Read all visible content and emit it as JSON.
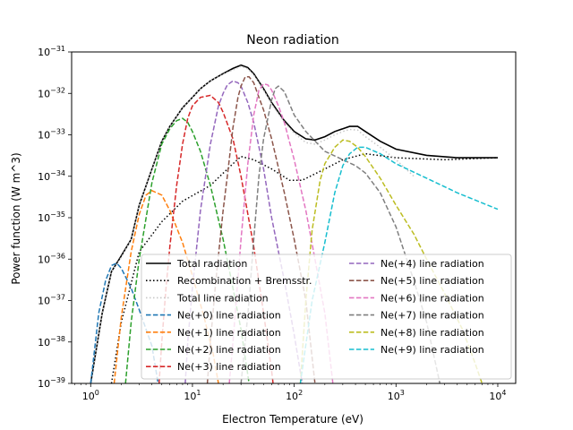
{
  "chart_data": {
    "type": "line",
    "title": "Neon radiation",
    "xlabel": "Electron Temperature (eV)",
    "ylabel": "Power function (W m^3)",
    "x_scale": "log",
    "y_scale": "log",
    "xlim": [
      0.65,
      15000
    ],
    "ylim": [
      1e-39,
      1e-31
    ],
    "x_tick_values": [
      1,
      10,
      100,
      1000,
      10000
    ],
    "x_tick_labels": [
      [
        "10",
        "0"
      ],
      [
        "10",
        "1"
      ],
      [
        "10",
        "2"
      ],
      [
        "10",
        "3"
      ],
      [
        "10",
        "4"
      ]
    ],
    "y_tick_values": [
      1e-39,
      1e-38,
      1e-37,
      1e-36,
      1e-35,
      1e-34,
      1e-33,
      1e-32,
      1e-31
    ],
    "y_tick_labels": [
      [
        "10",
        "−39"
      ],
      [
        "10",
        "−38"
      ],
      [
        "10",
        "−37"
      ],
      [
        "10",
        "−36"
      ],
      [
        "10",
        "−35"
      ],
      [
        "10",
        "−34"
      ],
      [
        "10",
        "−33"
      ],
      [
        "10",
        "−32"
      ],
      [
        "10",
        "−31"
      ]
    ],
    "grid": false,
    "legend_position": "lower-right",
    "legend_columns": 2,
    "series": [
      {
        "name": "Total radiation",
        "color": "#000000",
        "style": "solid",
        "points": [
          [
            1.0,
            1e-39
          ],
          [
            1.3,
            5e-38
          ],
          [
            1.6,
            5e-37
          ],
          [
            2.0,
            1.2e-36
          ],
          [
            2.5,
            3e-36
          ],
          [
            3.0,
            2e-35
          ],
          [
            4.0,
            1.5e-34
          ],
          [
            5.0,
            7e-34
          ],
          [
            6.0,
            1.6e-33
          ],
          [
            8.0,
            4.5e-33
          ],
          [
            10,
            8e-33
          ],
          [
            12,
            1.3e-32
          ],
          [
            15,
            2e-32
          ],
          [
            20,
            3e-32
          ],
          [
            25,
            4e-32
          ],
          [
            30,
            4.8e-32
          ],
          [
            35,
            4.2e-32
          ],
          [
            40,
            3e-32
          ],
          [
            50,
            1.3e-32
          ],
          [
            60,
            6e-33
          ],
          [
            80,
            2.2e-33
          ],
          [
            100,
            1.2e-33
          ],
          [
            130,
            8e-34
          ],
          [
            160,
            7.5e-34
          ],
          [
            200,
            9e-34
          ],
          [
            250,
            1.2e-33
          ],
          [
            300,
            1.4e-33
          ],
          [
            350,
            1.6e-33
          ],
          [
            420,
            1.6e-33
          ],
          [
            500,
            1.2e-33
          ],
          [
            700,
            7e-34
          ],
          [
            1000,
            4.5e-34
          ],
          [
            2000,
            3.2e-34
          ],
          [
            4000,
            2.8e-34
          ],
          [
            10000,
            2.8e-34
          ]
        ]
      },
      {
        "name": "Recombination + Bremsstr.",
        "color": "#000000",
        "style": "dotted",
        "points": [
          [
            1.6,
            1e-39
          ],
          [
            2.0,
            3e-38
          ],
          [
            3.0,
            1.5e-36
          ],
          [
            5.0,
            8e-36
          ],
          [
            8.0,
            2.5e-35
          ],
          [
            15,
            6e-35
          ],
          [
            25,
            2e-34
          ],
          [
            30,
            3e-34
          ],
          [
            40,
            2.5e-34
          ],
          [
            60,
            1.5e-34
          ],
          [
            90,
            8e-35
          ],
          [
            120,
            8e-35
          ],
          [
            200,
            1.5e-34
          ],
          [
            300,
            2.5e-34
          ],
          [
            500,
            3.5e-34
          ],
          [
            1000,
            2.8e-34
          ],
          [
            3000,
            2.5e-34
          ],
          [
            10000,
            2.8e-34
          ]
        ]
      },
      {
        "name": "Total line radiation",
        "color": "#c7c7c7",
        "style": "dotted",
        "points": [
          [
            1.0,
            1e-39
          ],
          [
            1.3,
            5e-38
          ],
          [
            1.6,
            5e-37
          ],
          [
            2.0,
            1.1e-36
          ],
          [
            2.5,
            3e-36
          ],
          [
            3.0,
            2e-35
          ],
          [
            4.0,
            1.5e-34
          ],
          [
            5.0,
            7e-34
          ],
          [
            6.0,
            1.6e-33
          ],
          [
            8.0,
            4.5e-33
          ],
          [
            10,
            8e-33
          ],
          [
            12,
            1.3e-32
          ],
          [
            15,
            2e-32
          ],
          [
            20,
            2.9e-32
          ],
          [
            25,
            3.7e-32
          ],
          [
            30,
            4.5e-32
          ],
          [
            35,
            3.9e-32
          ],
          [
            40,
            2.8e-32
          ],
          [
            50,
            1.2e-32
          ],
          [
            60,
            5.5e-33
          ],
          [
            80,
            2e-33
          ],
          [
            100,
            1.1e-33
          ],
          [
            130,
            6.5e-34
          ],
          [
            160,
            6e-34
          ],
          [
            200,
            7.5e-34
          ],
          [
            250,
            1e-33
          ],
          [
            300,
            1.2e-33
          ],
          [
            350,
            1.35e-33
          ],
          [
            420,
            1.3e-33
          ],
          [
            500,
            9e-34
          ],
          [
            700,
            5e-34
          ],
          [
            1000,
            2.5e-34
          ],
          [
            1500,
            1e-34
          ]
        ]
      },
      {
        "name": "Ne(+0) line radiation",
        "color": "#1f77b4",
        "style": "dashed",
        "points": [
          [
            1.0,
            1e-39
          ],
          [
            1.2,
            5e-38
          ],
          [
            1.4,
            3e-37
          ],
          [
            1.6,
            7e-37
          ],
          [
            1.8,
            8e-37
          ],
          [
            2.0,
            6e-37
          ],
          [
            2.5,
            2e-37
          ],
          [
            3.0,
            6e-38
          ],
          [
            4.0,
            8e-39
          ],
          [
            4.6,
            1e-39
          ]
        ]
      },
      {
        "name": "Ne(+1) line radiation",
        "color": "#ff7f0e",
        "style": "dashed",
        "points": [
          [
            1.7,
            1e-39
          ],
          [
            2.0,
            4e-38
          ],
          [
            2.5,
            1.5e-36
          ],
          [
            3.0,
            1.2e-35
          ],
          [
            3.5,
            3.5e-35
          ],
          [
            4.0,
            4.5e-35
          ],
          [
            5.0,
            3.5e-35
          ],
          [
            6.0,
            1.5e-35
          ],
          [
            8.0,
            2.5e-36
          ],
          [
            10,
            4e-37
          ],
          [
            13,
            4e-38
          ],
          [
            16,
            5e-39
          ],
          [
            18,
            1e-39
          ]
        ]
      },
      {
        "name": "Ne(+2) line radiation",
        "color": "#2ca02c",
        "style": "dashed",
        "points": [
          [
            2.2,
            1e-39
          ],
          [
            2.5,
            3e-38
          ],
          [
            3.0,
            1e-36
          ],
          [
            4.0,
            7e-35
          ],
          [
            5.0,
            6e-34
          ],
          [
            6.0,
            1.4e-33
          ],
          [
            7.0,
            2.2e-33
          ],
          [
            8.0,
            2.5e-33
          ],
          [
            9.0,
            2e-33
          ],
          [
            10,
            1.2e-33
          ],
          [
            12,
            4e-34
          ],
          [
            15,
            6e-35
          ],
          [
            20,
            3e-36
          ],
          [
            25,
            2e-37
          ],
          [
            30,
            2e-38
          ],
          [
            36,
            1e-39
          ]
        ]
      },
      {
        "name": "Ne(+3) line radiation",
        "color": "#d62728",
        "style": "dashed",
        "points": [
          [
            4.7,
            1e-39
          ],
          [
            5.0,
            1e-38
          ],
          [
            5.5,
            2e-37
          ],
          [
            6.0,
            2e-36
          ],
          [
            7.0,
            6e-35
          ],
          [
            8.0,
            6e-34
          ],
          [
            9.0,
            2.5e-33
          ],
          [
            10,
            5e-33
          ],
          [
            12,
            8e-33
          ],
          [
            15,
            9e-33
          ],
          [
            18,
            6e-33
          ],
          [
            20,
            3.5e-33
          ],
          [
            25,
            8e-34
          ],
          [
            30,
            1e-34
          ],
          [
            40,
            2e-36
          ],
          [
            50,
            5e-38
          ],
          [
            60,
            2e-39
          ],
          [
            62,
            1e-39
          ]
        ]
      },
      {
        "name": "Ne(+4) line radiation",
        "color": "#9467bd",
        "style": "dashed",
        "points": [
          [
            8.5,
            1e-39
          ],
          [
            9.0,
            1e-38
          ],
          [
            10,
            2e-37
          ],
          [
            12,
            1.5e-35
          ],
          [
            15,
            6e-34
          ],
          [
            18,
            5e-33
          ],
          [
            20,
            1e-32
          ],
          [
            22,
            1.6e-32
          ],
          [
            25,
            2e-32
          ],
          [
            28,
            1.8e-32
          ],
          [
            30,
            1.5e-32
          ],
          [
            35,
            6e-33
          ],
          [
            40,
            2e-33
          ],
          [
            50,
            1.5e-34
          ],
          [
            60,
            1e-35
          ],
          [
            80,
            3e-37
          ],
          [
            100,
            1.5e-38
          ],
          [
            120,
            1e-39
          ]
        ]
      },
      {
        "name": "Ne(+5) line radiation",
        "color": "#8c564b",
        "style": "dashed",
        "points": [
          [
            14,
            1e-39
          ],
          [
            15,
            1e-38
          ],
          [
            17,
            3e-37
          ],
          [
            20,
            1.5e-35
          ],
          [
            22,
            1e-34
          ],
          [
            25,
            1.5e-33
          ],
          [
            28,
            8e-33
          ],
          [
            30,
            1.5e-32
          ],
          [
            33,
            2.5e-32
          ],
          [
            36,
            2.5e-32
          ],
          [
            40,
            1.8e-32
          ],
          [
            45,
            8e-33
          ],
          [
            50,
            4e-33
          ],
          [
            60,
            8e-34
          ],
          [
            80,
            4e-35
          ],
          [
            100,
            3e-36
          ],
          [
            130,
            1e-37
          ],
          [
            160,
            1e-39
          ]
        ]
      },
      {
        "name": "Ne(+6) line radiation",
        "color": "#e377c2",
        "style": "dashed",
        "points": [
          [
            23,
            1e-39
          ],
          [
            25,
            1e-38
          ],
          [
            30,
            3e-36
          ],
          [
            35,
            2e-34
          ],
          [
            40,
            3e-33
          ],
          [
            45,
            1.2e-32
          ],
          [
            50,
            1.7e-32
          ],
          [
            55,
            1.6e-32
          ],
          [
            60,
            1.2e-32
          ],
          [
            70,
            5e-33
          ],
          [
            80,
            2e-33
          ],
          [
            100,
            2.5e-34
          ],
          [
            130,
            1.5e-35
          ],
          [
            160,
            1e-36
          ],
          [
            200,
            5e-38
          ],
          [
            240,
            1e-39
          ]
        ]
      },
      {
        "name": "Ne(+7) line radiation",
        "color": "#7f7f7f",
        "style": "dashed",
        "points": [
          [
            30,
            1e-39
          ],
          [
            33,
            1e-38
          ],
          [
            36,
            1e-37
          ],
          [
            40,
            3e-36
          ],
          [
            45,
            1e-34
          ],
          [
            50,
            8e-34
          ],
          [
            60,
            7e-33
          ],
          [
            65,
            1.3e-32
          ],
          [
            70,
            1.5e-32
          ],
          [
            80,
            1.1e-32
          ],
          [
            100,
            3e-33
          ],
          [
            130,
            1.2e-33
          ],
          [
            200,
            4e-34
          ],
          [
            300,
            2.5e-34
          ],
          [
            400,
            1.8e-34
          ],
          [
            500,
            1.2e-34
          ],
          [
            700,
            4e-35
          ],
          [
            1000,
            6e-36
          ],
          [
            1500,
            3e-37
          ],
          [
            2000,
            3e-38
          ],
          [
            2700,
            1e-39
          ]
        ]
      },
      {
        "name": "Ne(+8) line radiation",
        "color": "#bcbd22",
        "style": "dashed",
        "points": [
          [
            115,
            1e-39
          ],
          [
            130,
            1e-37
          ],
          [
            150,
            5e-36
          ],
          [
            180,
            8e-35
          ],
          [
            200,
            2e-34
          ],
          [
            250,
            5e-34
          ],
          [
            300,
            7.5e-34
          ],
          [
            350,
            7e-34
          ],
          [
            420,
            5e-34
          ],
          [
            500,
            3e-34
          ],
          [
            700,
            9e-35
          ],
          [
            1000,
            2e-35
          ],
          [
            1500,
            4e-36
          ],
          [
            2000,
            1e-36
          ],
          [
            3000,
            1.5e-37
          ],
          [
            4500,
            2e-38
          ],
          [
            6000,
            3e-39
          ],
          [
            7000,
            1e-39
          ]
        ]
      },
      {
        "name": "Ne(+9) line radiation",
        "color": "#17becf",
        "style": "dashed",
        "points": [
          [
            115,
            1e-39
          ],
          [
            150,
            1e-37
          ],
          [
            200,
            2.5e-36
          ],
          [
            250,
            4e-35
          ],
          [
            300,
            1.8e-34
          ],
          [
            350,
            3.5e-34
          ],
          [
            420,
            5e-34
          ],
          [
            500,
            5e-34
          ],
          [
            700,
            3.5e-34
          ],
          [
            1000,
            2e-34
          ],
          [
            2000,
            9e-35
          ],
          [
            4000,
            4e-35
          ],
          [
            10000,
            1.6e-35
          ]
        ]
      }
    ]
  }
}
